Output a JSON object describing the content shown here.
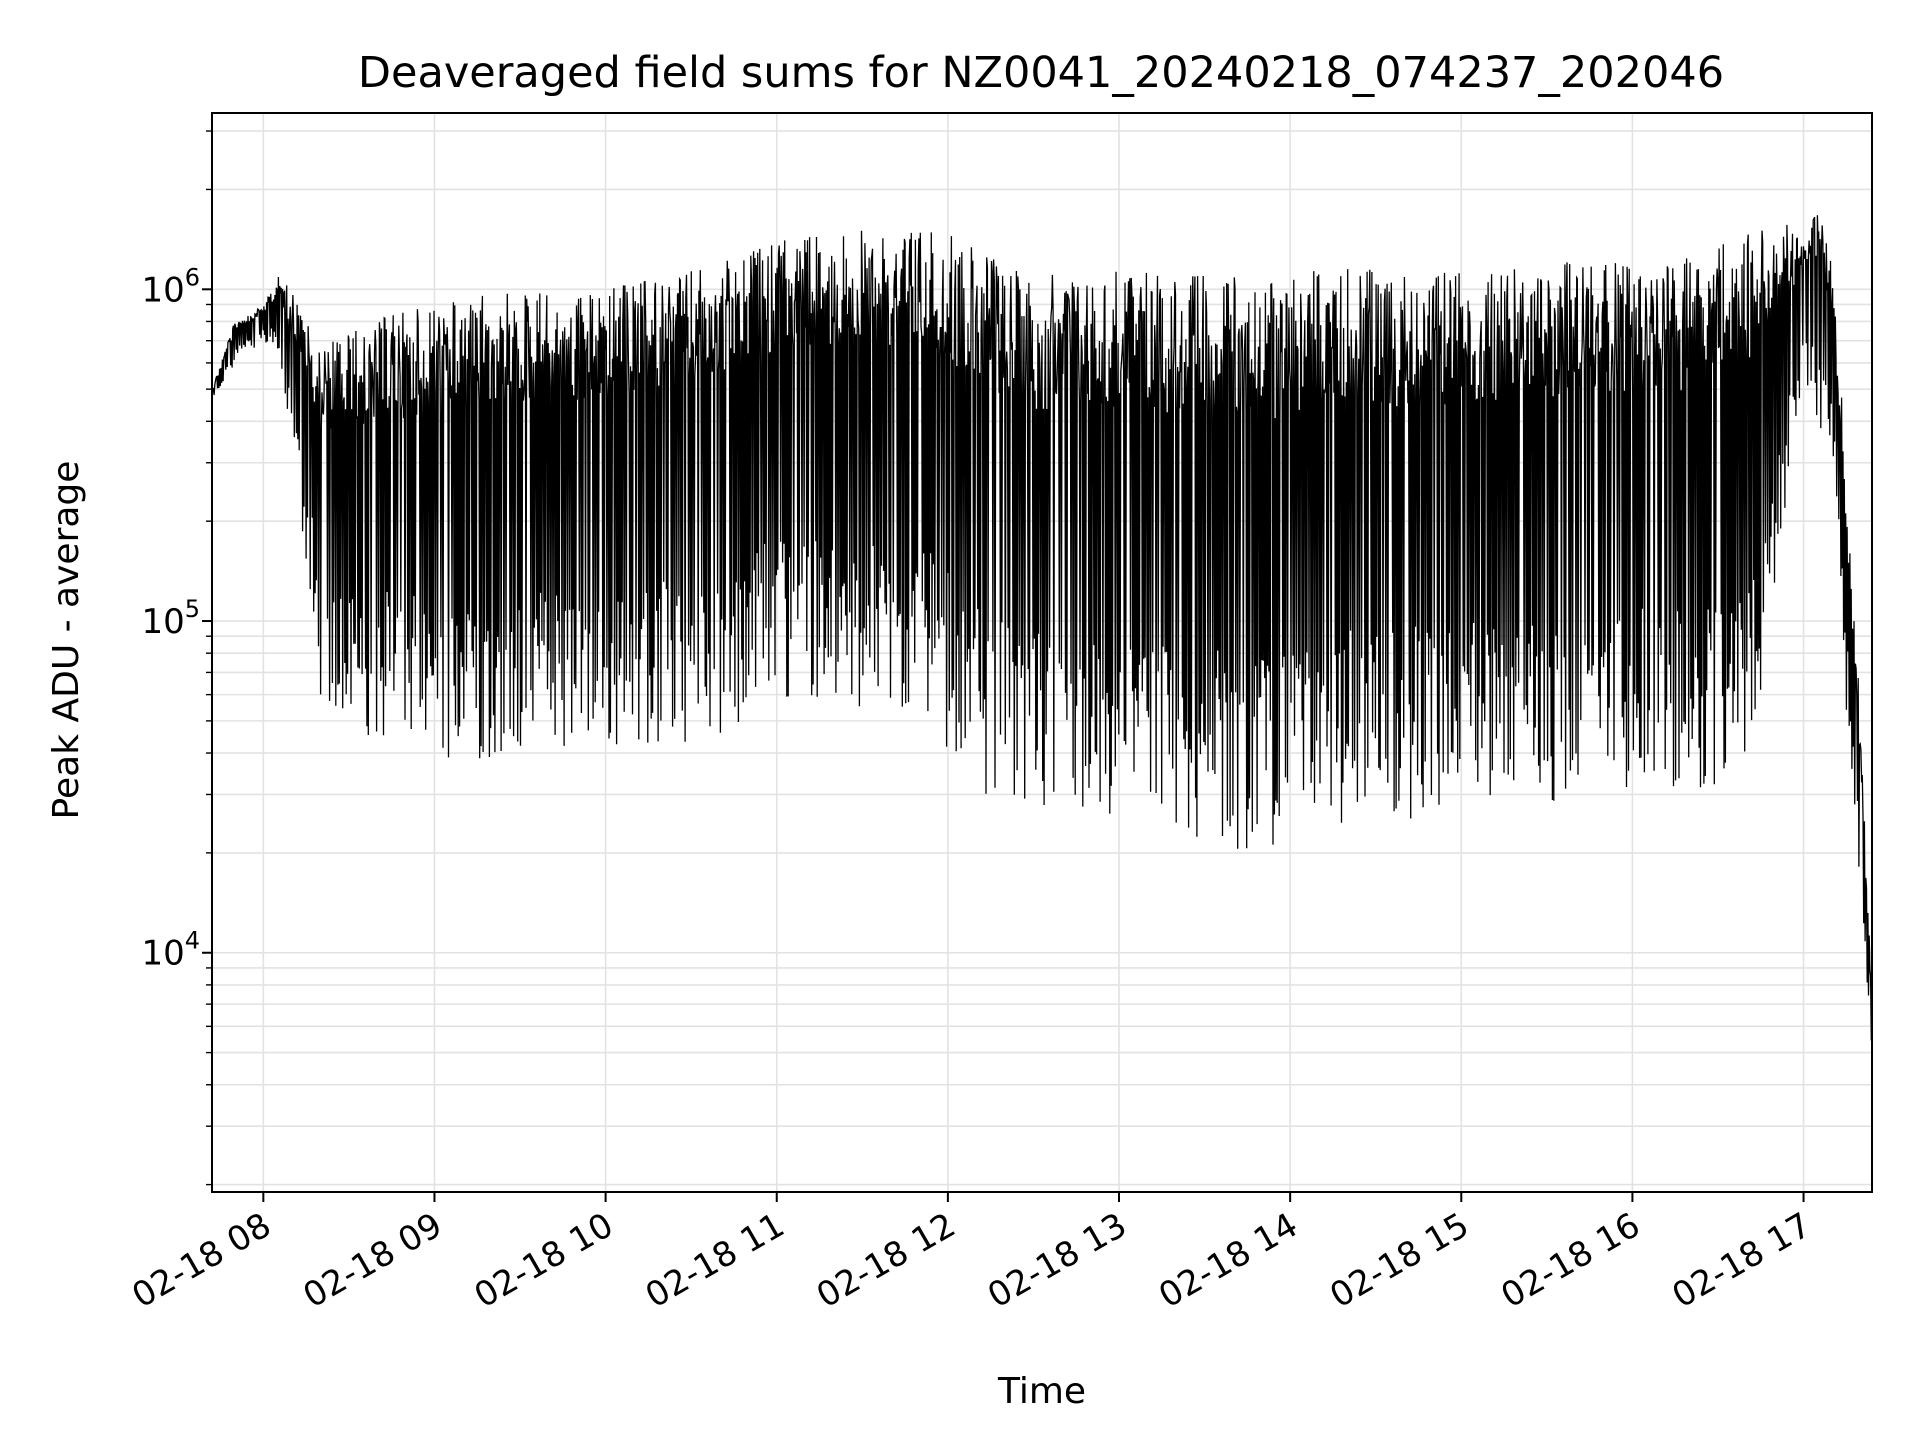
{
  "chart_data": {
    "type": "line",
    "title": "Deaveraged field sums for NZ0041_20240218_074237_202046",
    "xlabel": "Time",
    "ylabel": "Peak ADU - average",
    "y_scale": "log",
    "grid": true,
    "legend": "none",
    "line_color": "#000000",
    "x_tick_labels": [
      "02-18 08",
      "02-18 09",
      "02-18 10",
      "02-18 11",
      "02-18 12",
      "02-18 13",
      "02-18 14",
      "02-18 15",
      "02-18 16",
      "02-18 17"
    ],
    "y_tick_labels": [
      {
        "base": "10",
        "exp": "4",
        "value": 10000
      },
      {
        "base": "10",
        "exp": "5",
        "value": 100000
      },
      {
        "base": "10",
        "exp": "6",
        "value": 1000000
      }
    ],
    "xlim": [
      "2024-02-18 07:42",
      "2024-02-18 17:24"
    ],
    "ylim": [
      1900,
      3400000
    ],
    "series": [
      {
        "upper_envelope": {
          "x": [
            "07:42",
            "07:50",
            "08:00",
            "08:05",
            "08:10",
            "08:20",
            "08:30",
            "08:45",
            "09:00",
            "09:15",
            "09:30",
            "09:45",
            "10:00",
            "10:20",
            "10:40",
            "11:00",
            "11:20",
            "11:40",
            "11:55",
            "12:10",
            "12:20",
            "12:40",
            "13:00",
            "13:20",
            "13:40",
            "14:00",
            "14:20",
            "14:40",
            "15:00",
            "15:20",
            "15:40",
            "16:00",
            "16:20",
            "16:40",
            "16:50",
            "17:00",
            "17:05",
            "17:10",
            "17:15",
            "17:20",
            "17:24"
          ],
          "y": [
            500000,
            800000,
            900000,
            1100000,
            1000000,
            700000,
            750000,
            850000,
            900000,
            950000,
            1000000,
            1000000,
            1000000,
            1100000,
            1200000,
            1400000,
            1500000,
            1550000,
            1500000,
            1400000,
            1150000,
            1100000,
            1150000,
            1100000,
            1100000,
            1100000,
            1200000,
            1150000,
            1150000,
            1150000,
            1250000,
            1200000,
            1250000,
            1500000,
            1700000,
            1400000,
            1800000,
            1200000,
            300000,
            50000,
            7000
          ]
        },
        "lower_envelope": {
          "x": [
            "07:42",
            "07:50",
            "08:00",
            "08:05",
            "08:10",
            "08:15",
            "08:20",
            "08:30",
            "08:45",
            "09:00",
            "09:15",
            "09:30",
            "09:45",
            "10:00",
            "10:20",
            "10:40",
            "11:00",
            "11:20",
            "11:40",
            "11:55",
            "12:10",
            "12:20",
            "12:40",
            "13:00",
            "13:20",
            "13:40",
            "14:00",
            "14:20",
            "14:40",
            "15:00",
            "15:20",
            "15:40",
            "16:00",
            "16:20",
            "16:40",
            "16:45",
            "17:00",
            "17:10",
            "17:15",
            "17:20",
            "17:24"
          ],
          "y": [
            450000,
            600000,
            700000,
            650000,
            300000,
            150000,
            60000,
            45000,
            45000,
            38000,
            37000,
            40000,
            42000,
            40000,
            42000,
            45000,
            60000,
            55000,
            50000,
            48000,
            30000,
            27000,
            22000,
            22000,
            21000,
            20000,
            21000,
            24000,
            25000,
            27000,
            28000,
            29000,
            30000,
            30000,
            35000,
            60000,
            550000,
            300000,
            50000,
            15000,
            5000
          ]
        }
      }
    ]
  }
}
